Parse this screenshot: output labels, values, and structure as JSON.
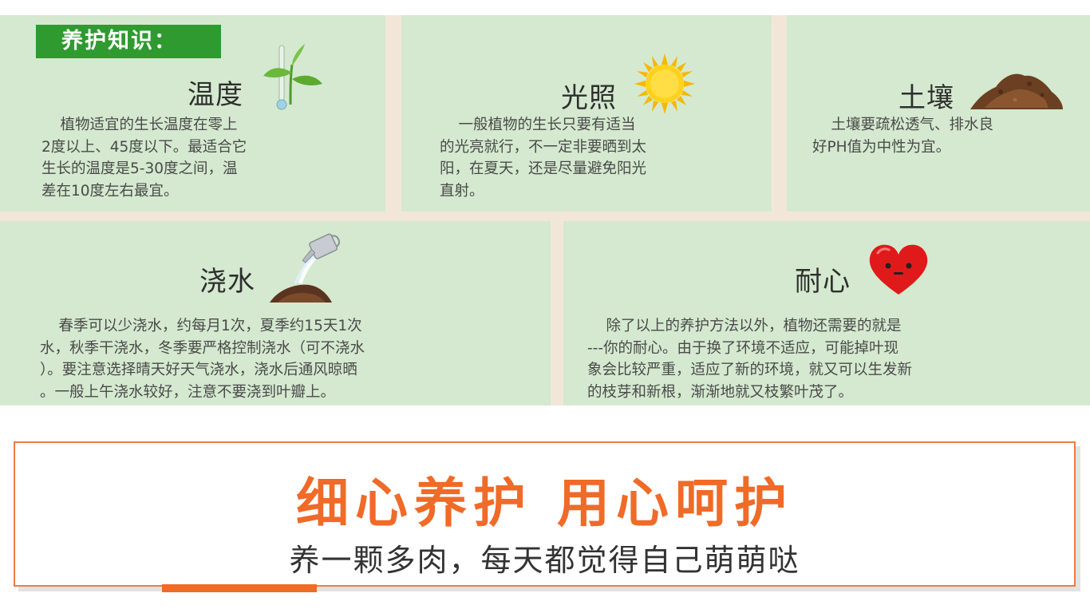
{
  "header_tag": "养护知识：",
  "cards": {
    "temperature": {
      "title": "温度",
      "text": "    植物适宜的生长温度在零上\n2度以上、45度以下。最适合它\n生长的温度是5-30度之间，温\n差在10度左右最宜。"
    },
    "light": {
      "title": "光照",
      "text": "    一般植物的生长只要有适当\n的光亮就行，不一定非要晒到太\n阳，在夏天，还是尽量避免阳光\n直射。"
    },
    "soil": {
      "title": "土壤",
      "text": "    土壤要疏松透气、排水良\n好PH值为中性为宜。"
    },
    "water": {
      "title": "浇水",
      "text": "    春季可以少浇水，约每月1次，夏季约15天1次\n水，秋季干浇水，冬季要严格控制浇水（可不浇水\n）。要注意选择晴天好天气浇水，浇水后通风晾晒\n。一般上午浇水较好，注意不要浇到叶瓣上。"
    },
    "patience": {
      "title": "耐心",
      "text": "    除了以上的养护方法以外，植物还需要的就是\n---你的耐心。由于换了环境不适应，可能掉叶现\n象会比较严重，适应了新的环境，就又可以生发新\n的枝芽和新根，渐渐地就又枝繁叶茂了。"
    }
  },
  "banner": {
    "title": "细心养护 用心呵护",
    "subtitle": "养一颗多肉，每天都觉得自己萌萌哒"
  },
  "icons": {
    "temperature": "sprout-thermometer-icon",
    "light": "sun-icon",
    "soil": "soil-pile-icon",
    "water": "watering-can-icon",
    "patience": "heart-face-icon"
  },
  "colors": {
    "card_bg": "#d4e9cf",
    "tag_bg": "#2f9a2f",
    "accent": "#f06a28",
    "border": "#f07b3f"
  }
}
